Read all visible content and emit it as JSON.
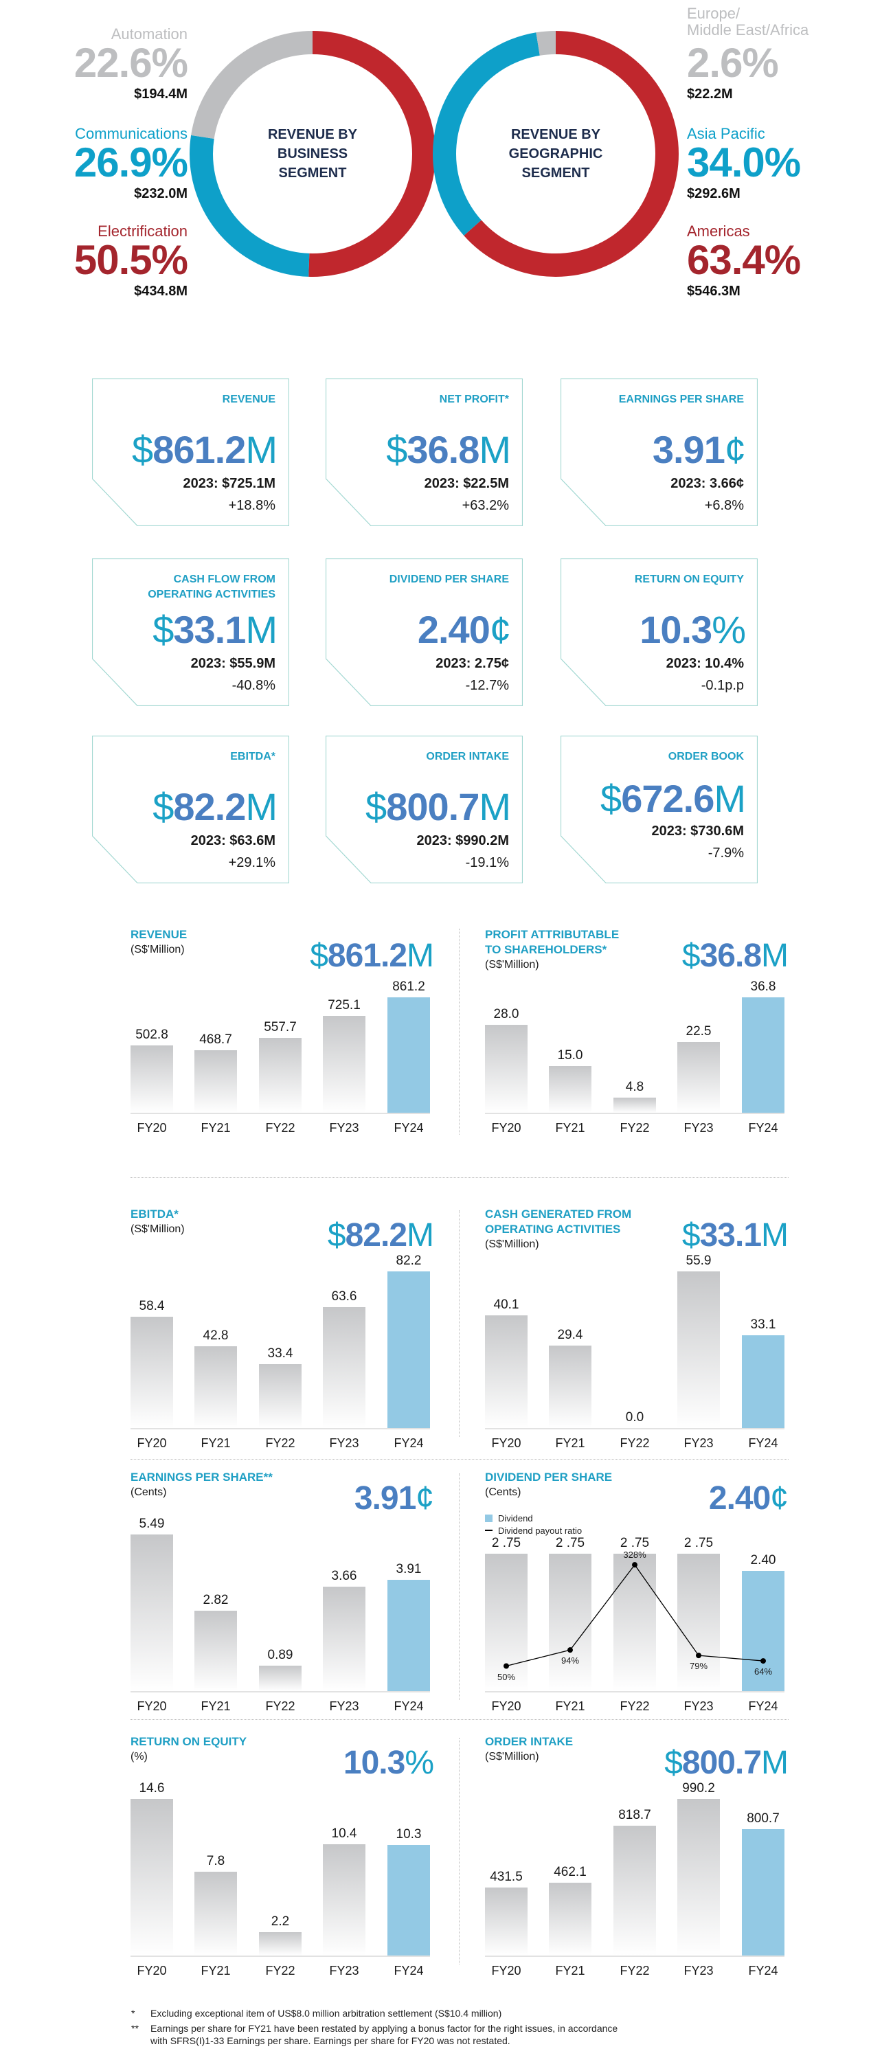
{
  "colors": {
    "red": "#c0272d",
    "blue": "#0ea0c9",
    "gray": "#bdbec0",
    "navy": "#1d2c4c",
    "accent": "#1f9fc4",
    "value_blue": "#4a7fc1",
    "highlight_bar": "#93c9e4",
    "card_border": "#a3d8d2"
  },
  "donuts": [
    {
      "center": "REVENUE BY\nBUSINESS\nSEGMENT",
      "segments": [
        {
          "label": "Electrification",
          "pct": "50.5%",
          "value": 50.5,
          "amount": "$434.8M",
          "color": "#c0272d",
          "text_color": "#a4252d"
        },
        {
          "label": "Communications",
          "pct": "26.9%",
          "value": 26.9,
          "amount": "$232.0M",
          "color": "#0ea0c9",
          "text_color": "#0ea0c9"
        },
        {
          "label": "Automation",
          "pct": "22.6%",
          "value": 22.6,
          "amount": "$194.4M",
          "color": "#bdbec0",
          "text_color": "#bdbec0"
        }
      ]
    },
    {
      "center": "REVENUE BY\nGEOGRAPHIC\nSEGMENT",
      "segments": [
        {
          "label": "Americas",
          "pct": "63.4%",
          "value": 63.4,
          "amount": "$546.3M",
          "color": "#c0272d",
          "text_color": "#a4252d"
        },
        {
          "label": "Asia Pacific",
          "pct": "34.0%",
          "value": 34.0,
          "amount": "$292.6M",
          "color": "#0ea0c9",
          "text_color": "#0ea0c9"
        },
        {
          "label": "Europe/\nMiddle East/Africa",
          "pct": "2.6%",
          "value": 2.6,
          "amount": "$22.2M",
          "color": "#bdbec0",
          "text_color": "#bdbec0"
        }
      ]
    }
  ],
  "kpis": [
    {
      "label": "REVENUE",
      "prefix": "$",
      "number": "861.2",
      "suffix": "M",
      "prev": "2023: $725.1M",
      "change": "+18.8%"
    },
    {
      "label": "NET PROFIT*",
      "prefix": "$",
      "number": "36.8",
      "suffix": "M",
      "prev": "2023: $22.5M",
      "change": "+63.2%"
    },
    {
      "label": "EARNINGS PER SHARE",
      "prefix": "",
      "number": "3.91",
      "suffix": "¢",
      "prev": "2023: 3.66¢",
      "change": "+6.8%"
    },
    {
      "label": "CASH FLOW FROM\nOPERATING ACTIVITIES",
      "prefix": "$",
      "number": "33.1",
      "suffix": "M",
      "prev": "2023: $55.9M",
      "change": "-40.8%"
    },
    {
      "label": "DIVIDEND PER SHARE",
      "prefix": "",
      "number": "2.40",
      "suffix": "¢",
      "prev": "2023: 2.75¢",
      "change": "-12.7%"
    },
    {
      "label": "RETURN ON EQUITY",
      "prefix": "",
      "number": "10.3",
      "suffix": "%",
      "prev": "2023: 10.4%",
      "change": "-0.1p.p"
    },
    {
      "label": "EBITDA*",
      "prefix": "$",
      "number": "82.2",
      "suffix": "M",
      "prev": "2023: $63.6M",
      "change": "+29.1%"
    },
    {
      "label": "ORDER INTAKE",
      "prefix": "$",
      "number": "800.7",
      "suffix": "M",
      "prev": "2023: $990.2M",
      "change": "-19.1%"
    },
    {
      "label": "ORDER BOOK",
      "prefix": "$",
      "number": "672.6",
      "suffix": "M",
      "prev": "2023: $730.6M",
      "change": "-7.9%"
    }
  ],
  "chart_data": [
    {
      "type": "bar",
      "title": "REVENUE",
      "unit": "(S$'Million)",
      "headline": {
        "prefix": "$",
        "number": "861.2",
        "suffix": "M"
      },
      "categories": [
        "FY20",
        "FY21",
        "FY22",
        "FY23",
        "FY24"
      ],
      "values": [
        502.8,
        468.7,
        557.7,
        725.1,
        861.2
      ],
      "value_labels": [
        "502.8",
        "468.7",
        "557.7",
        "725.1",
        "861.2"
      ],
      "highlight": "FY24",
      "grid": false
    },
    {
      "type": "bar",
      "title": "PROFIT ATTRIBUTABLE\nTO SHAREHOLDERS*",
      "unit": "(S$'Million)",
      "headline": {
        "prefix": "$",
        "number": "36.8",
        "suffix": "M"
      },
      "categories": [
        "FY20",
        "FY21",
        "FY22",
        "FY23",
        "FY24"
      ],
      "values": [
        28.0,
        15.0,
        4.8,
        22.5,
        36.8
      ],
      "value_labels": [
        "28.0",
        "15.0",
        "4.8",
        "22.5",
        "36.8"
      ],
      "highlight": "FY24",
      "grid": false
    },
    {
      "type": "bar",
      "title": "EBITDA*",
      "unit": "(S$'Million)",
      "headline": {
        "prefix": "$",
        "number": "82.2",
        "suffix": "M"
      },
      "categories": [
        "FY20",
        "FY21",
        "FY22",
        "FY23",
        "FY24"
      ],
      "values": [
        58.4,
        42.8,
        33.4,
        63.6,
        82.2
      ],
      "value_labels": [
        "58.4",
        "42.8",
        "33.4",
        "63.6",
        "82.2"
      ],
      "highlight": "FY24",
      "grid": false
    },
    {
      "type": "bar",
      "title": "CASH GENERATED FROM\nOPERATING ACTIVITIES",
      "unit": "(S$'Million)",
      "headline": {
        "prefix": "$",
        "number": "33.1",
        "suffix": "M"
      },
      "categories": [
        "FY20",
        "FY21",
        "FY22",
        "FY23",
        "FY24"
      ],
      "values": [
        40.1,
        29.4,
        0.0,
        55.9,
        33.1
      ],
      "value_labels": [
        "40.1",
        "29.4",
        "0.0",
        "55.9",
        "33.1"
      ],
      "highlight": "FY24",
      "grid": false
    },
    {
      "type": "bar",
      "title": "EARNINGS PER SHARE**",
      "unit": "(Cents)",
      "headline": {
        "prefix": "",
        "number": "3.91",
        "suffix": "¢"
      },
      "categories": [
        "FY20",
        "FY21",
        "FY22",
        "FY23",
        "FY24"
      ],
      "values": [
        5.49,
        2.82,
        0.89,
        3.66,
        3.91
      ],
      "value_labels": [
        "5.49",
        "2.82",
        "0.89",
        "3.66",
        "3.91"
      ],
      "highlight": "FY24",
      "grid": false
    },
    {
      "type": "bar",
      "title": "DIVIDEND PER SHARE",
      "unit": "(Cents)",
      "headline": {
        "prefix": "",
        "number": "2.40",
        "suffix": "¢"
      },
      "categories": [
        "FY20",
        "FY21",
        "FY22",
        "FY23",
        "FY24"
      ],
      "values": [
        2.75,
        2.75,
        2.75,
        2.75,
        2.4
      ],
      "value_labels": [
        "2 .75",
        "2 .75",
        "2 .75",
        "2 .75",
        "2.40"
      ],
      "highlight": "FY24",
      "grid": false,
      "legend": [
        {
          "name": "Dividend",
          "kind": "bar"
        },
        {
          "name": "Dividend payout ratio",
          "kind": "line"
        }
      ],
      "line_series": {
        "name": "Dividend payout ratio",
        "values": [
          50,
          94,
          328,
          79,
          64
        ],
        "labels": [
          "50%",
          "94%",
          "328%",
          "79%",
          "64%"
        ]
      }
    },
    {
      "type": "bar",
      "title": "RETURN ON EQUITY",
      "unit": "(%)",
      "headline": {
        "prefix": "",
        "number": "10.3",
        "suffix": "%"
      },
      "categories": [
        "FY20",
        "FY21",
        "FY22",
        "FY23",
        "FY24"
      ],
      "values": [
        14.6,
        7.8,
        2.2,
        10.4,
        10.3
      ],
      "value_labels": [
        "14.6",
        "7.8",
        "2.2",
        "10.4",
        "10.3"
      ],
      "highlight": "FY24",
      "grid": false
    },
    {
      "type": "bar",
      "title": "ORDER INTAKE",
      "unit": "(S$'Million)",
      "headline": {
        "prefix": "$",
        "number": "800.7",
        "suffix": "M"
      },
      "categories": [
        "FY20",
        "FY21",
        "FY22",
        "FY23",
        "FY24"
      ],
      "values": [
        431.5,
        462.1,
        818.7,
        990.2,
        800.7
      ],
      "value_labels": [
        "431.5",
        "462.1",
        "818.7",
        "990.2",
        "800.7"
      ],
      "highlight": "FY24",
      "grid": false
    }
  ],
  "footnotes": [
    {
      "mark": "*",
      "text": "Excluding exceptional item of US$8.0 million arbitration settlement (S$10.4 million)"
    },
    {
      "mark": "**",
      "text": "Earnings per share for FY21 have been restated by applying a bonus factor for the right issues, in accordance\nwith SFRS(I)1-33 Earnings per share. Earnings per share for FY20 was not restated."
    }
  ]
}
